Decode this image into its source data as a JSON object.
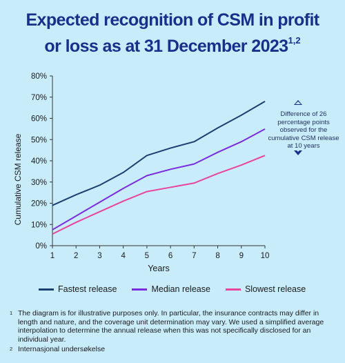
{
  "title": {
    "line1": "Expected recognition of CSM in profit",
    "line2": "or loss as at 31 December 2023",
    "superscript": "1,2"
  },
  "annotation": "Difference of 26 percentage points observed for the cumulative CSM release at 10 years",
  "footnotes": [
    {
      "num": "1",
      "text": "The diagram is for illustrative purposes only. In particular, the insurance contracts may differ in length and nature, and the coverage unit determination may vary. We used a simplified average interpolation to determine the annual release when this was not specifically disclosed for an individual year."
    },
    {
      "num": "2",
      "text": "Internasjonal undersøkelse"
    }
  ],
  "chart_data": {
    "type": "line",
    "title": "Expected recognition of CSM in profit or loss as at 31 December 2023",
    "xlabel": "Years",
    "ylabel": "Cumulative CSM release",
    "x": [
      1,
      2,
      3,
      4,
      5,
      6,
      7,
      8,
      9,
      10
    ],
    "xlim": [
      1,
      10
    ],
    "ylim": [
      0,
      80
    ],
    "yticks": [
      "0%",
      "10%",
      "20%",
      "30%",
      "40%",
      "50%",
      "60%",
      "70%",
      "80%"
    ],
    "grid": false,
    "legend_position": "bottom",
    "series": [
      {
        "name": "Fastest release",
        "color": "#1b3f72",
        "values": [
          19,
          24,
          28.5,
          34.5,
          42.5,
          46,
          49,
          55.5,
          61.5,
          68
        ]
      },
      {
        "name": "Median release",
        "color": "#7a2be0",
        "values": [
          7.5,
          14,
          20.5,
          27,
          33,
          36,
          38.5,
          44,
          49,
          55
        ]
      },
      {
        "name": "Slowest release",
        "color": "#e8449c",
        "values": [
          5.5,
          11,
          16,
          21,
          25.5,
          27.5,
          29.5,
          34,
          38,
          42.5
        ]
      }
    ]
  }
}
